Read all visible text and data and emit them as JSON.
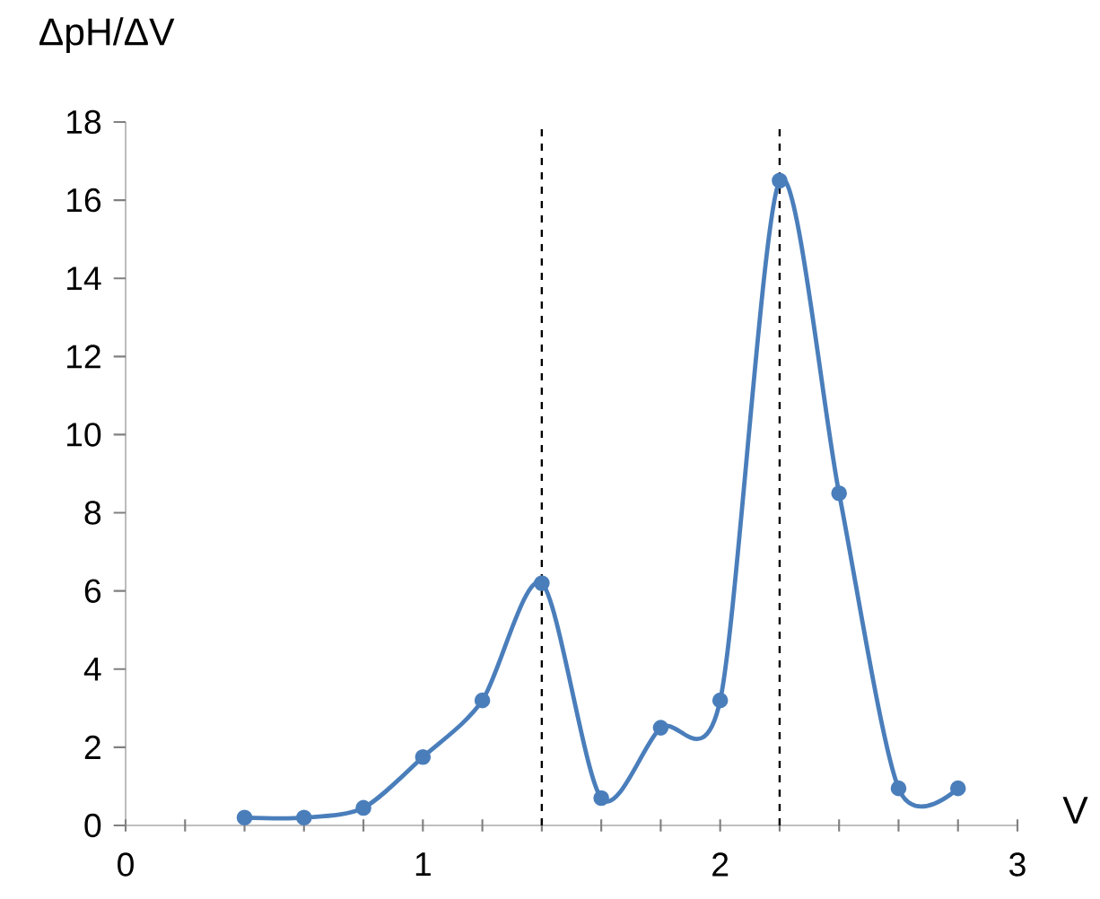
{
  "chart_data": {
    "type": "line",
    "ylabel": "ΔpH/ΔV",
    "xlabel": "V",
    "x": [
      0.4,
      0.6,
      0.8,
      1.0,
      1.2,
      1.4,
      1.6,
      1.8,
      2.0,
      2.2,
      2.4,
      2.6,
      2.8
    ],
    "series": [
      {
        "color": "#4a7ebb",
        "values": [
          0.2,
          0.2,
          0.45,
          1.75,
          3.2,
          6.2,
          0.7,
          2.5,
          3.2,
          16.5,
          8.5,
          0.95,
          0.95
        ]
      }
    ],
    "marker": "circle",
    "xlim": [
      0,
      3
    ],
    "ylim": [
      0,
      18
    ],
    "xticks": [
      0,
      {
        "value": 0.2,
        "label": null
      },
      {
        "value": 0.4,
        "label": null
      },
      {
        "value": 0.6,
        "label": null
      },
      {
        "value": 0.8,
        "label": null
      },
      1,
      {
        "value": 1.2,
        "label": null
      },
      {
        "value": 1.4,
        "label": null
      },
      {
        "value": 1.6,
        "label": null
      },
      {
        "value": 1.8,
        "label": null
      },
      2,
      {
        "value": 2.2,
        "label": null
      },
      {
        "value": 2.4,
        "label": null
      },
      {
        "value": 2.6,
        "label": null
      },
      {
        "value": 2.8,
        "label": null
      },
      3
    ],
    "yticks": [
      0,
      2,
      4,
      6,
      8,
      10,
      12,
      14,
      16,
      18
    ],
    "ref_lines": [
      {
        "axis": "x",
        "value": 1.4,
        "color": "#000000",
        "line_style": "dashed"
      },
      {
        "axis": "x",
        "value": 2.2,
        "color": "#000000",
        "line_style": "dashed"
      }
    ]
  }
}
